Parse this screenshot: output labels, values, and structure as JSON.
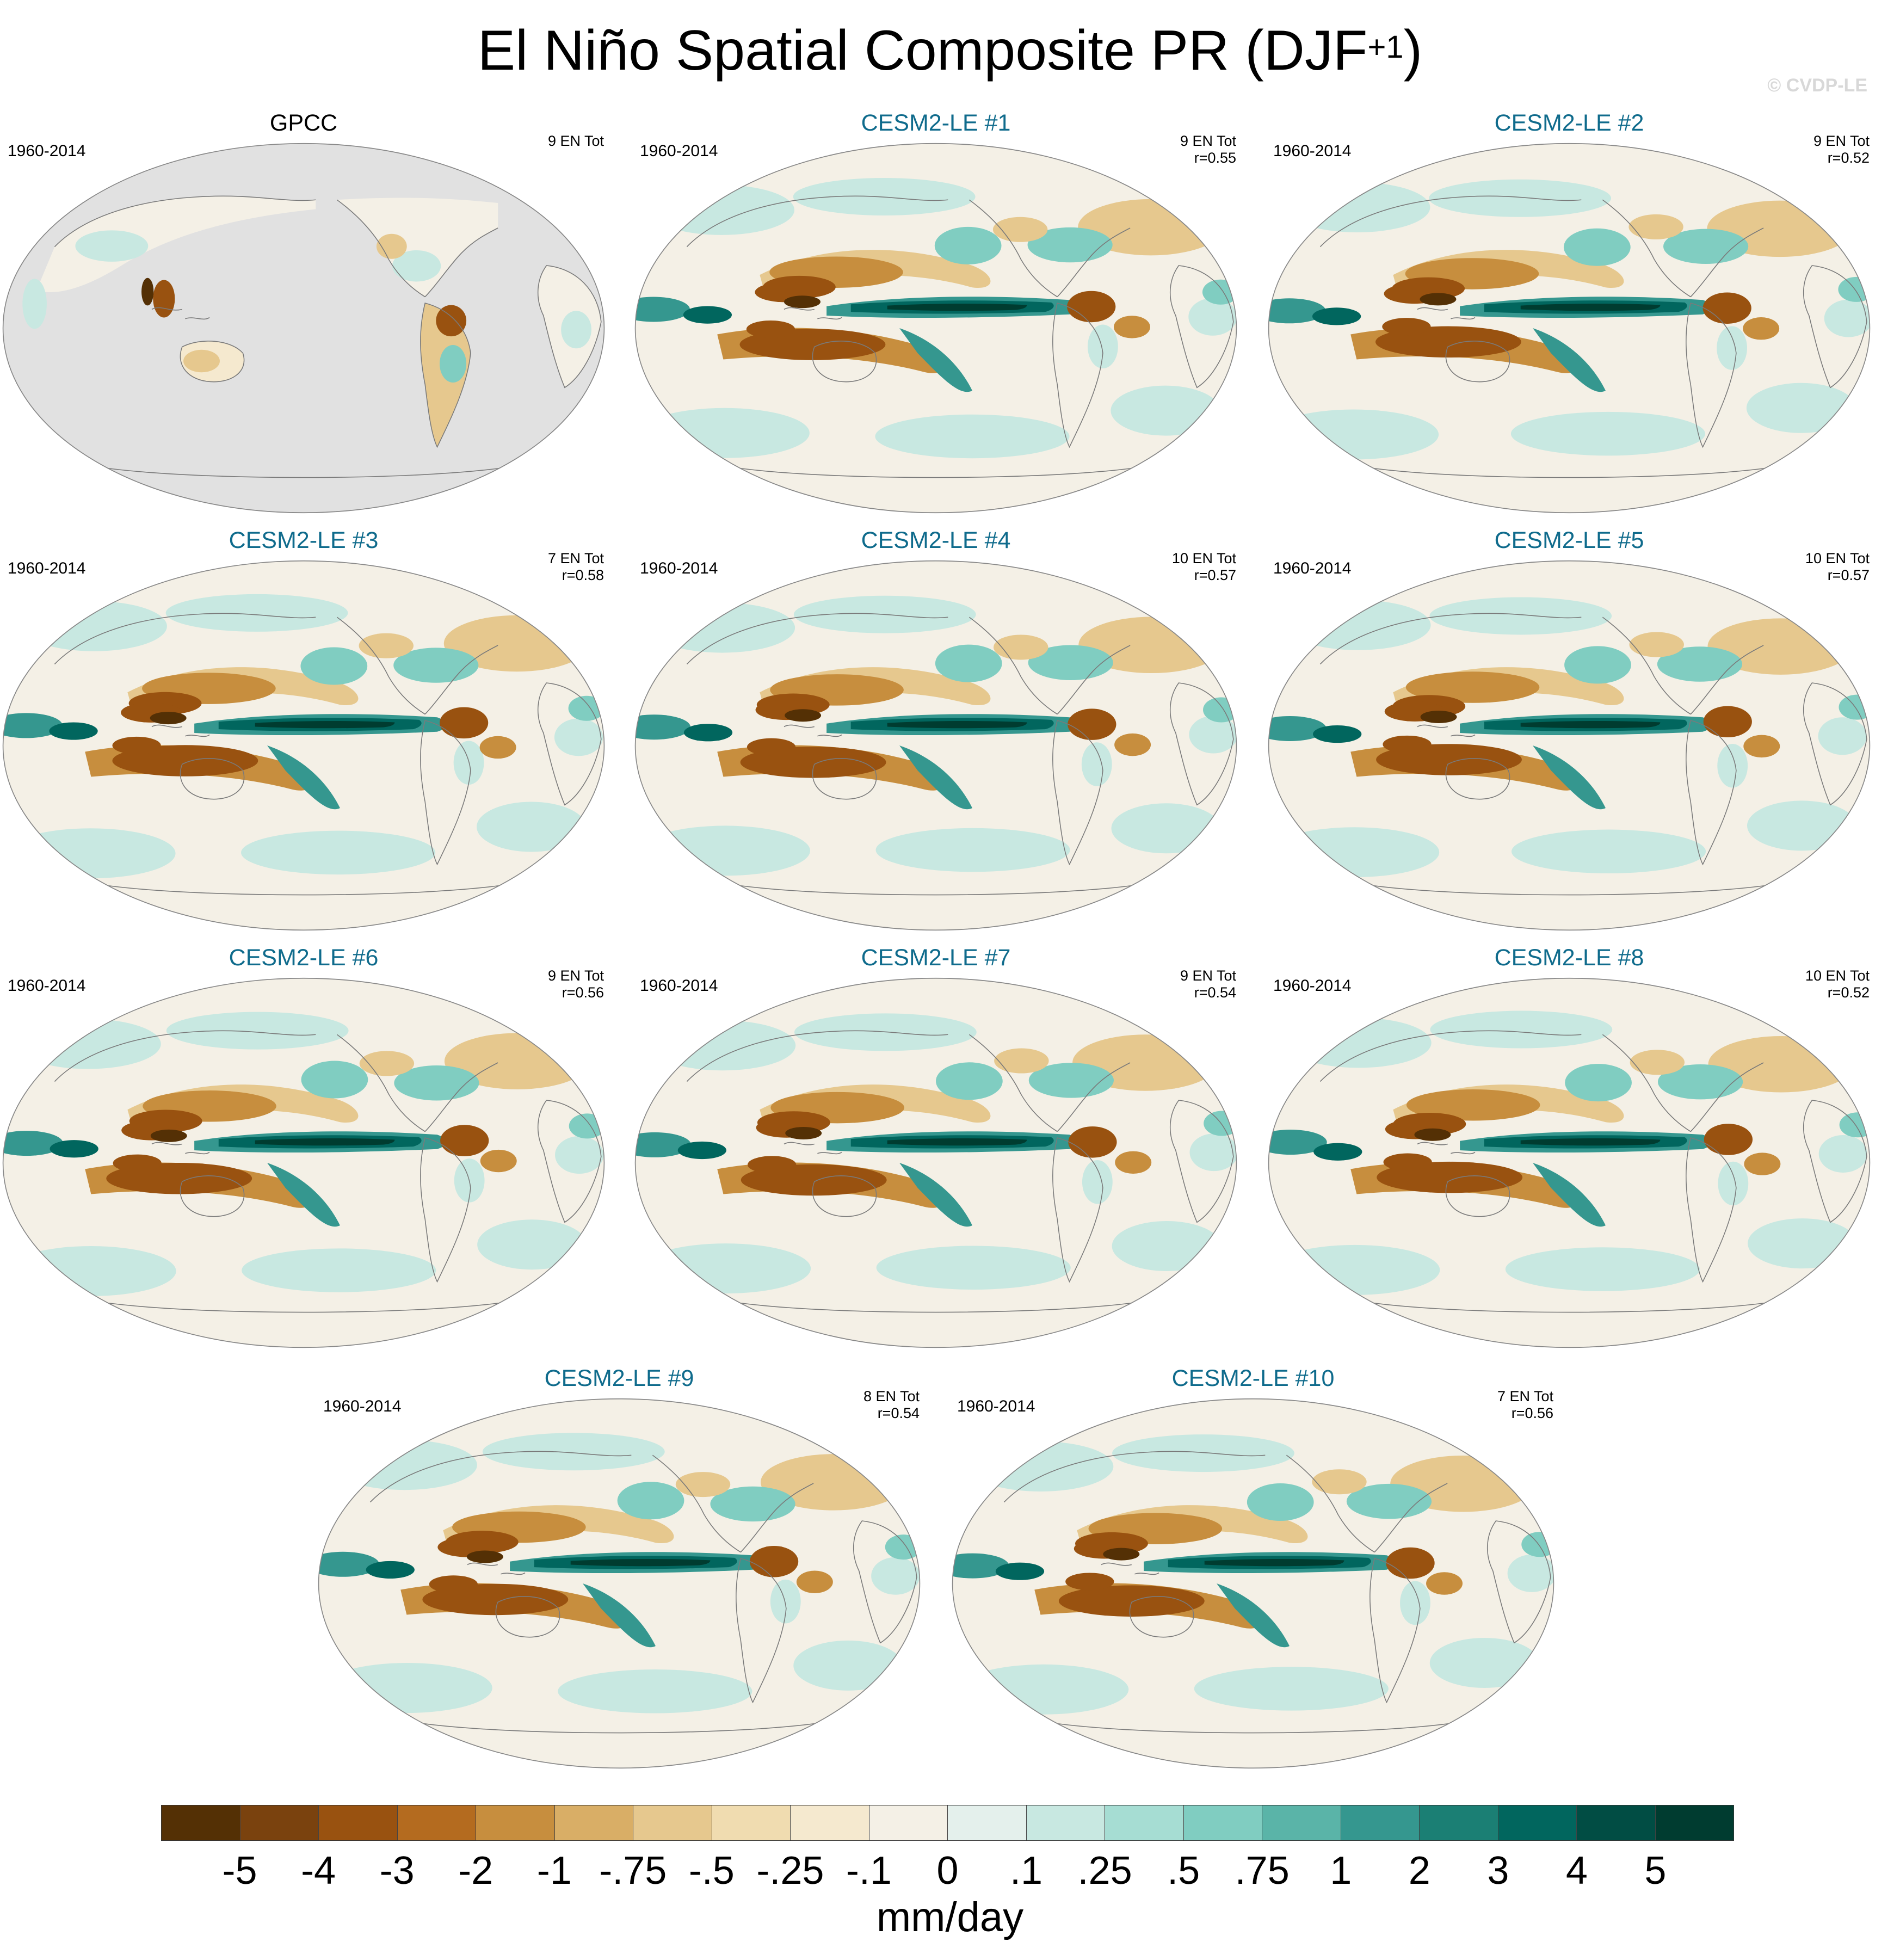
{
  "title_main": "El Niño Spatial Composite PR (DJF",
  "title_sup": "+1",
  "title_end": ")",
  "watermark": "© CVDP-LE",
  "colors": {
    "land_mask_gray": "#e1e1e1",
    "ocean_near_zero": "#f4f0e6",
    "model_title": "#0f6b8c"
  },
  "panels": [
    {
      "title": "GPCC",
      "period": "1960-2014",
      "stats_line1": "9 EN Tot",
      "stats_line2": "",
      "observation": true
    },
    {
      "title": "CESM2-LE #1",
      "period": "1960-2014",
      "stats_line1": "9 EN Tot",
      "stats_line2": "r=0.55",
      "observation": false
    },
    {
      "title": "CESM2-LE #2",
      "period": "1960-2014",
      "stats_line1": "9 EN Tot",
      "stats_line2": "r=0.52",
      "observation": false
    },
    {
      "title": "CESM2-LE #3",
      "period": "1960-2014",
      "stats_line1": "7 EN Tot",
      "stats_line2": "r=0.58",
      "observation": false
    },
    {
      "title": "CESM2-LE #4",
      "period": "1960-2014",
      "stats_line1": "10 EN Tot",
      "stats_line2": "r=0.57",
      "observation": false
    },
    {
      "title": "CESM2-LE #5",
      "period": "1960-2014",
      "stats_line1": "10 EN Tot",
      "stats_line2": "r=0.57",
      "observation": false
    },
    {
      "title": "CESM2-LE #6",
      "period": "1960-2014",
      "stats_line1": "9 EN Tot",
      "stats_line2": "r=0.56",
      "observation": false
    },
    {
      "title": "CESM2-LE #7",
      "period": "1960-2014",
      "stats_line1": "9 EN Tot",
      "stats_line2": "r=0.54",
      "observation": false
    },
    {
      "title": "CESM2-LE #8",
      "period": "1960-2014",
      "stats_line1": "10 EN Tot",
      "stats_line2": "r=0.52",
      "observation": false
    },
    {
      "title": "CESM2-LE #9",
      "period": "1960-2014",
      "stats_line1": "8 EN Tot",
      "stats_line2": "r=0.54",
      "observation": false
    },
    {
      "title": "CESM2-LE #10",
      "period": "1960-2014",
      "stats_line1": "7 EN Tot",
      "stats_line2": "r=0.56",
      "observation": false
    }
  ],
  "colorbar": {
    "units": "mm/day",
    "colors": [
      "#543005",
      "#7a420e",
      "#995210",
      "#b46b1f",
      "#c78e3e",
      "#d9ae66",
      "#e6c88e",
      "#f0dcb0",
      "#f5e9cf",
      "#f4f0e6",
      "#e4f0ec",
      "#c8e8e1",
      "#a6ddd3",
      "#80cdc1",
      "#5ab4a8",
      "#35978f",
      "#1b7f74",
      "#01665e",
      "#014d44",
      "#003c30"
    ],
    "tick_labels": [
      "-5",
      "-4",
      "-3",
      "-2",
      "-1",
      "-.75",
      "-.5",
      "-.25",
      "-.1",
      "0",
      ".1",
      ".25",
      ".5",
      ".75",
      "1",
      "2",
      "3",
      "4",
      "5"
    ]
  }
}
